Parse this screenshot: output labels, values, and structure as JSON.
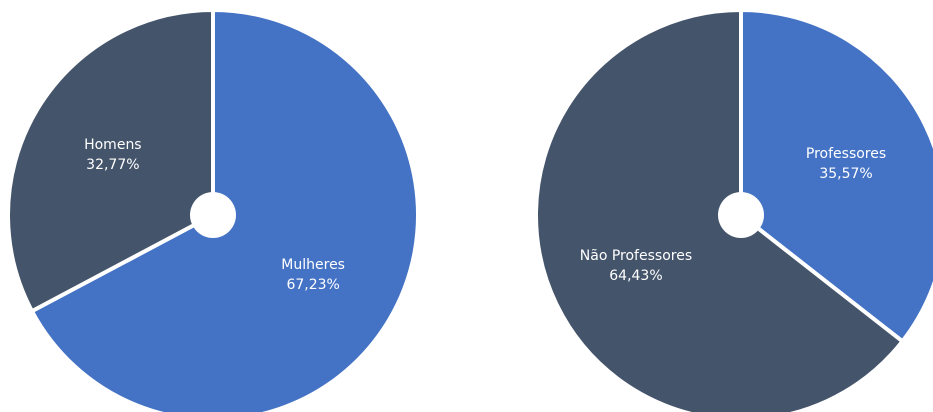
{
  "chart_data": [
    {
      "type": "pie",
      "categories": [
        "Mulheres",
        "Homens"
      ],
      "values": [
        67.23,
        32.77
      ],
      "value_labels": [
        "67,23%",
        "32,77%"
      ],
      "colors": [
        "#4472c4",
        "#44546a"
      ]
    },
    {
      "type": "pie",
      "categories": [
        "Professores",
        "Não Professores"
      ],
      "values": [
        35.57,
        64.43
      ],
      "value_labels": [
        "35,57%",
        "64,43%"
      ],
      "colors": [
        "#4472c4",
        "#44546a"
      ]
    }
  ]
}
